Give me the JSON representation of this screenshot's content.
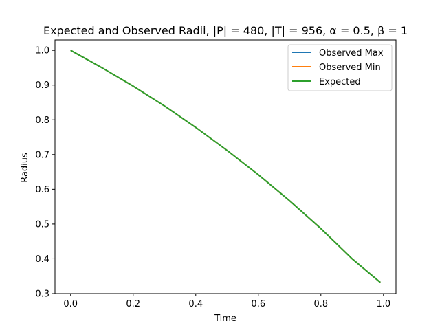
{
  "chart_data": {
    "type": "line",
    "title": "Expected and Observed Radii, |P| = 480, |T| = 956, α = 0.5, β = 1",
    "xlabel": "Time",
    "ylabel": "Radius",
    "xlim": [
      -0.05,
      1.04
    ],
    "ylim": [
      0.3,
      1.03
    ],
    "xticks": [
      0.0,
      0.2,
      0.4,
      0.6,
      0.8,
      1.0
    ],
    "xtick_labels": [
      "0.0",
      "0.2",
      "0.4",
      "0.6",
      "0.8",
      "1.0"
    ],
    "yticks": [
      0.3,
      0.4,
      0.5,
      0.6,
      0.7,
      0.8,
      0.9,
      1.0
    ],
    "ytick_labels": [
      "0.3",
      "0.4",
      "0.5",
      "0.6",
      "0.7",
      "0.8",
      "0.9",
      "1.0"
    ],
    "legend_position": "top-right",
    "grid": false,
    "series": [
      {
        "name": "Observed Max",
        "color": "#1f77b4",
        "x": [
          0.0,
          0.1,
          0.2,
          0.3,
          0.4,
          0.5,
          0.6,
          0.7,
          0.8,
          0.9,
          0.99
        ],
        "y": [
          1.0,
          0.95,
          0.897,
          0.84,
          0.778,
          0.712,
          0.642,
          0.567,
          0.487,
          0.4,
          0.332
        ]
      },
      {
        "name": "Observed Min",
        "color": "#ff7f0e",
        "x": [
          0.0,
          0.1,
          0.2,
          0.3,
          0.4,
          0.5,
          0.6,
          0.7,
          0.8,
          0.9,
          0.99
        ],
        "y": [
          1.0,
          0.95,
          0.897,
          0.84,
          0.778,
          0.712,
          0.642,
          0.567,
          0.487,
          0.4,
          0.332
        ]
      },
      {
        "name": "Expected",
        "color": "#2ca02c",
        "x": [
          0.0,
          0.1,
          0.2,
          0.3,
          0.4,
          0.5,
          0.6,
          0.7,
          0.8,
          0.9,
          0.99
        ],
        "y": [
          1.0,
          0.95,
          0.897,
          0.84,
          0.778,
          0.712,
          0.642,
          0.567,
          0.487,
          0.4,
          0.332
        ]
      }
    ]
  }
}
